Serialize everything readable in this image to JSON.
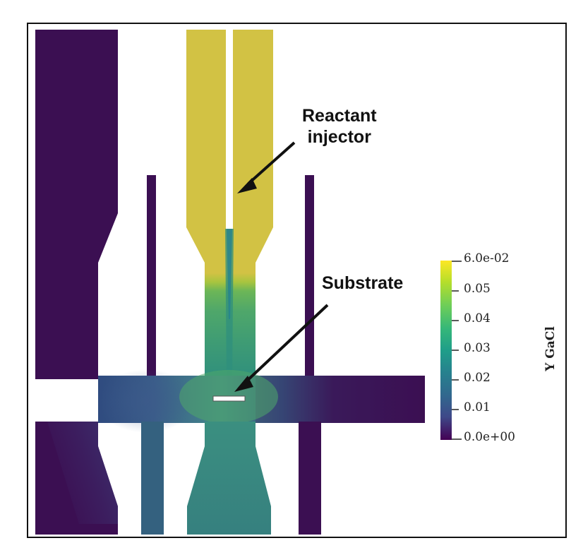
{
  "annotations": {
    "reactant_injector": [
      "Reactant",
      "injector"
    ],
    "substrate": "Substrate"
  },
  "colorbar": {
    "title": "Y GaCl",
    "ticks": [
      "6.0e-02",
      "0.05",
      "0.04",
      "0.03",
      "0.02",
      "0.01",
      "0.0e+00"
    ],
    "range": [
      0.0,
      0.06
    ],
    "colormap": [
      "#fde725",
      "#b5de2b",
      "#6ece58",
      "#35b779",
      "#1f9e89",
      "#26828e",
      "#31688e",
      "#3e4989",
      "#482878",
      "#440154"
    ]
  },
  "colors": {
    "low": "#3b0f52",
    "high": "#d2c244",
    "frame": "#111111"
  }
}
